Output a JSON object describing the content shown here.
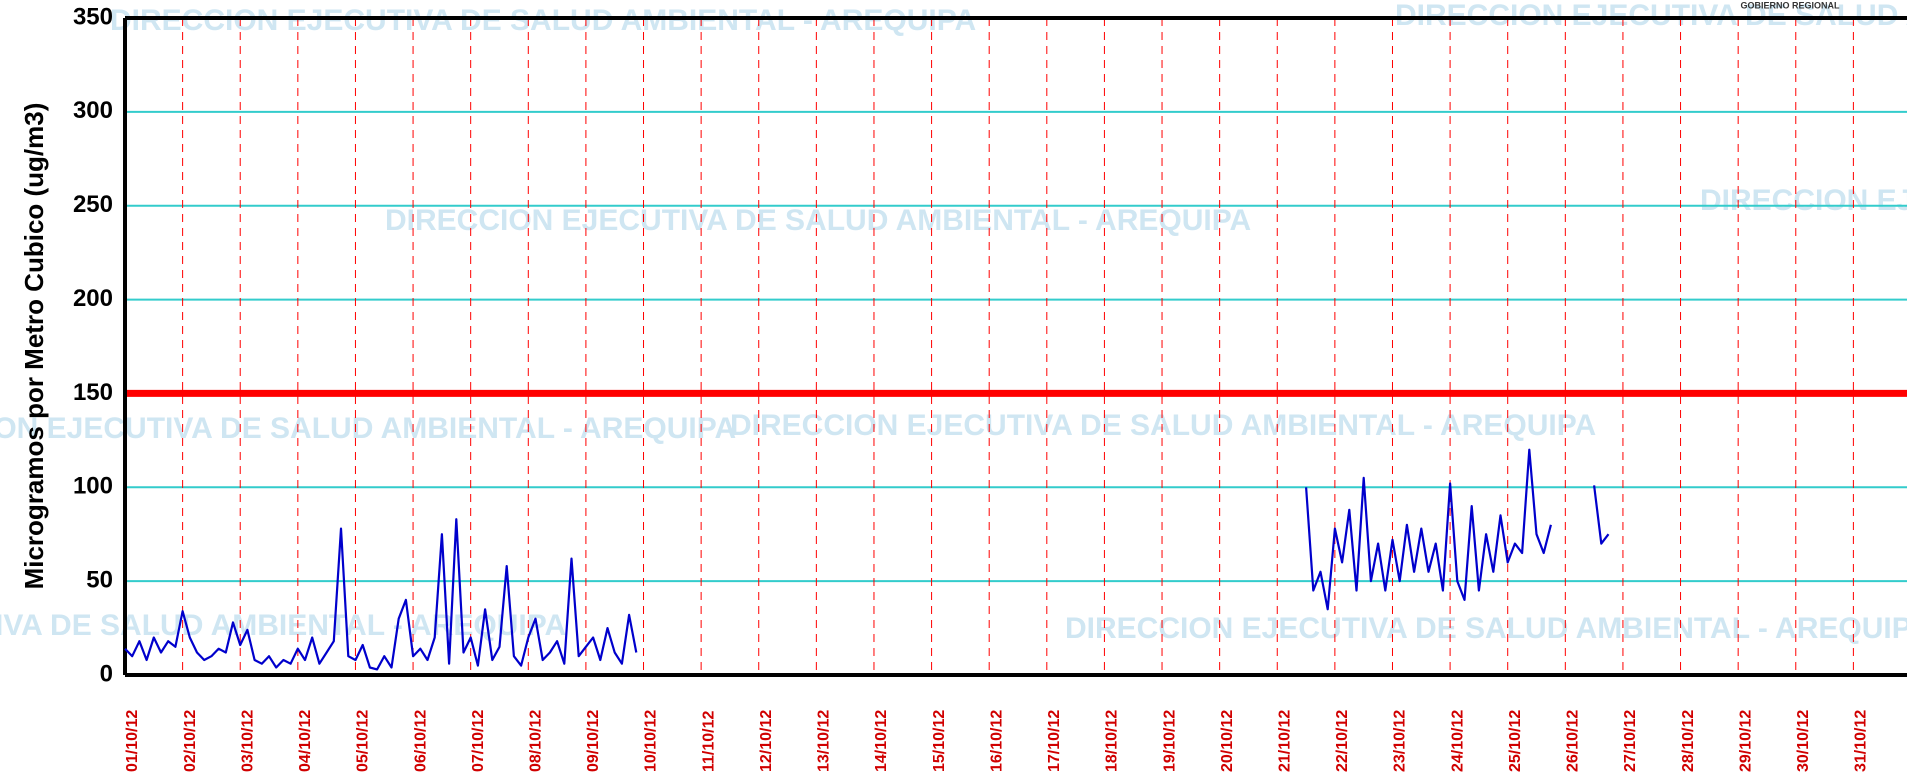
{
  "chart_data": {
    "type": "line",
    "ylabel": "Microgramos por Metro Cubico (ug/m3)",
    "watermark": "DIRECCION EJECUTIVA DE SALUD AMBIENTAL - AREQUIPA",
    "logo_text": "GOBIERNO REGIONAL",
    "xlim": [
      1,
      32
    ],
    "ylim": [
      0,
      350
    ],
    "yticks": [
      0,
      50,
      100,
      150,
      200,
      250,
      300,
      350
    ],
    "xticks": [
      {
        "value": 1,
        "label": "01/10/12"
      },
      {
        "value": 2,
        "label": "02/10/12"
      },
      {
        "value": 3,
        "label": "03/10/12"
      },
      {
        "value": 4,
        "label": "04/10/12"
      },
      {
        "value": 5,
        "label": "05/10/12"
      },
      {
        "value": 6,
        "label": "06/10/12"
      },
      {
        "value": 7,
        "label": "07/10/12"
      },
      {
        "value": 8,
        "label": "08/10/12"
      },
      {
        "value": 9,
        "label": "09/10/12"
      },
      {
        "value": 10,
        "label": "10/10/12"
      },
      {
        "value": 11,
        "label": "11/10/12"
      },
      {
        "value": 12,
        "label": "12/10/12"
      },
      {
        "value": 13,
        "label": "13/10/12"
      },
      {
        "value": 14,
        "label": "14/10/12"
      },
      {
        "value": 15,
        "label": "15/10/12"
      },
      {
        "value": 16,
        "label": "16/10/12"
      },
      {
        "value": 17,
        "label": "17/10/12"
      },
      {
        "value": 18,
        "label": "18/10/12"
      },
      {
        "value": 19,
        "label": "19/10/12"
      },
      {
        "value": 20,
        "label": "20/10/12"
      },
      {
        "value": 21,
        "label": "21/10/12"
      },
      {
        "value": 22,
        "label": "22/10/12"
      },
      {
        "value": 23,
        "label": "23/10/12"
      },
      {
        "value": 24,
        "label": "24/10/12"
      },
      {
        "value": 25,
        "label": "25/10/12"
      },
      {
        "value": 26,
        "label": "26/10/12"
      },
      {
        "value": 27,
        "label": "27/10/12"
      },
      {
        "value": 28,
        "label": "28/10/12"
      },
      {
        "value": 29,
        "label": "29/10/12"
      },
      {
        "value": 30,
        "label": "30/10/12"
      },
      {
        "value": 31,
        "label": "31/10/12"
      }
    ],
    "grid_color": "#33cccc",
    "xgrid_color": "#ff0000",
    "threshold": {
      "value": 150,
      "color": "#ff0000"
    },
    "x": [
      1,
      1.125,
      1.25,
      1.375,
      1.5,
      1.625,
      1.75,
      1.875,
      2,
      2.125,
      2.25,
      2.375,
      2.5,
      2.625,
      2.75,
      2.875,
      3,
      3.125,
      3.25,
      3.375,
      3.5,
      3.625,
      3.75,
      3.875,
      4,
      4.125,
      4.25,
      4.375,
      4.5,
      4.625,
      4.75,
      4.875,
      5,
      5.125,
      5.25,
      5.375,
      5.5,
      5.625,
      5.75,
      5.875,
      6,
      6.125,
      6.25,
      6.375,
      6.5,
      6.625,
      6.75,
      6.875,
      7,
      7.125,
      7.25,
      7.375,
      7.5,
      7.625,
      7.75,
      7.875,
      8,
      8.125,
      8.25,
      8.375,
      8.5,
      8.625,
      8.75,
      8.875,
      9,
      9.125,
      9.25,
      9.375,
      9.5,
      9.625,
      9.75,
      9.875,
      10,
      21.5,
      21.625,
      21.75,
      21.875,
      22,
      22.125,
      22.25,
      22.375,
      22.5,
      22.625,
      22.75,
      22.875,
      23,
      23.125,
      23.25,
      23.375,
      23.5,
      23.625,
      23.75,
      23.875,
      24,
      24.125,
      24.25,
      24.375,
      24.5,
      24.625,
      24.75,
      24.875,
      25,
      25.125,
      25.25,
      25.375,
      25.5,
      25.625,
      25.75,
      26,
      26.5,
      26.625,
      26.75
    ],
    "series": [
      {
        "color": "#0000cc",
        "values": [
          14,
          10,
          18,
          8,
          20,
          12,
          18,
          15,
          34,
          20,
          12,
          8,
          10,
          14,
          12,
          28,
          16,
          24,
          8,
          6,
          10,
          4,
          8,
          6,
          14,
          8,
          20,
          6,
          12,
          18,
          78,
          10,
          8,
          16,
          4,
          3,
          10,
          4,
          30,
          40,
          10,
          14,
          8,
          20,
          75,
          6,
          83,
          12,
          20,
          5,
          35,
          8,
          15,
          58,
          10,
          5,
          20,
          30,
          8,
          12,
          18,
          6,
          62,
          10,
          15,
          20,
          8,
          25,
          12,
          6,
          32,
          12,
          null,
          100,
          45,
          55,
          35,
          78,
          60,
          88,
          45,
          105,
          50,
          70,
          45,
          72,
          50,
          80,
          55,
          78,
          55,
          70,
          45,
          102,
          50,
          40,
          90,
          45,
          75,
          55,
          85,
          60,
          70,
          65,
          120,
          75,
          65,
          80,
          null,
          101,
          70,
          75
        ]
      }
    ]
  }
}
